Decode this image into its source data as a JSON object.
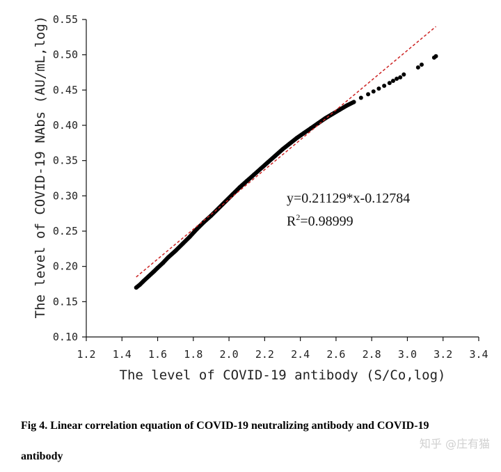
{
  "chart_data": {
    "type": "scatter",
    "xlabel": "The level of COVID-19 antibody (S/Co,log)",
    "ylabel": "The level of COVID-19 NAbs (AU/mL,log)",
    "xlim": [
      1.2,
      3.4
    ],
    "ylim": [
      0.1,
      0.55
    ],
    "x_ticks": [
      "1.2",
      "1.4",
      "1.6",
      "1.8",
      "2.0",
      "2.2",
      "2.4",
      "2.6",
      "2.8",
      "3.0",
      "3.2",
      "3.4"
    ],
    "y_ticks": [
      "0.10",
      "0.15",
      "0.20",
      "0.25",
      "0.30",
      "0.35",
      "0.40",
      "0.45",
      "0.50",
      "0.55"
    ],
    "grid": false,
    "series": [
      {
        "kind": "points",
        "color": "#000000",
        "x": [
          1.48,
          1.5,
          1.52,
          1.55,
          1.58,
          1.6,
          1.63,
          1.66,
          1.7,
          1.74,
          1.78,
          1.82,
          1.86,
          1.9,
          1.94,
          1.98,
          2.02,
          2.06,
          2.1,
          2.14,
          2.18,
          2.22,
          2.26,
          2.3,
          2.34,
          2.38,
          2.42,
          2.46,
          2.5,
          2.54,
          2.58,
          2.62,
          2.66,
          2.7,
          2.74,
          2.78,
          2.81,
          2.84,
          2.87,
          2.9,
          2.92,
          2.94,
          2.96,
          2.98,
          3.06,
          3.08,
          3.15,
          3.16
        ],
        "y": [
          0.17,
          0.174,
          0.179,
          0.186,
          0.193,
          0.198,
          0.205,
          0.213,
          0.222,
          0.232,
          0.242,
          0.253,
          0.263,
          0.272,
          0.282,
          0.292,
          0.302,
          0.312,
          0.321,
          0.33,
          0.339,
          0.348,
          0.357,
          0.366,
          0.374,
          0.382,
          0.389,
          0.396,
          0.403,
          0.41,
          0.416,
          0.422,
          0.428,
          0.433,
          0.439,
          0.444,
          0.448,
          0.452,
          0.456,
          0.46,
          0.463,
          0.466,
          0.468,
          0.472,
          0.482,
          0.486,
          0.496,
          0.498
        ]
      },
      {
        "kind": "fit-line",
        "color": "#cc2222",
        "x": [
          1.48,
          3.16
        ],
        "y": [
          0.185,
          0.54
        ]
      }
    ],
    "annotations": [
      "y=0.21129*x-0.12784",
      "R",
      "2",
      "=0.98999"
    ]
  },
  "caption": {
    "line1": "Fig 4. Linear correlation equation of COVID-19 neutralizing antibody and COVID-19",
    "line2": "antibody"
  },
  "watermark": "知乎 @庄有猫"
}
